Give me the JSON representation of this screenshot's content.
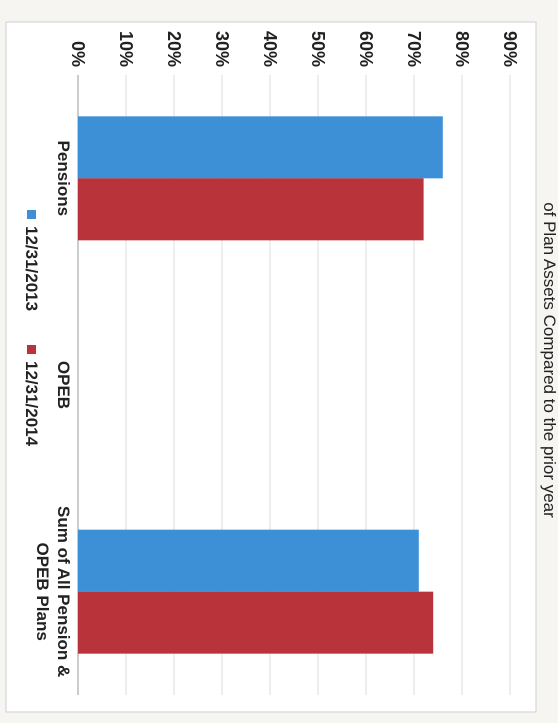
{
  "chart_data": {
    "type": "bar",
    "title": "of Plan Assets Compared to the prior year",
    "categories": [
      "Pensions",
      "OPEB",
      [
        "Sum of All Pension &",
        "OPEB Plans"
      ]
    ],
    "series": [
      {
        "name": "12/31/2013",
        "color": "#3d8fd6",
        "values": [
          76,
          null,
          71
        ]
      },
      {
        "name": "12/31/2014",
        "color": "#b8343a",
        "values": [
          72,
          null,
          74
        ]
      }
    ],
    "yticks": [
      "0%",
      "10%",
      "20%",
      "30%",
      "40%",
      "50%",
      "60%",
      "70%",
      "80%",
      "90%"
    ],
    "ylim": [
      0,
      90
    ],
    "grid": true,
    "legend_position": "bottom"
  }
}
